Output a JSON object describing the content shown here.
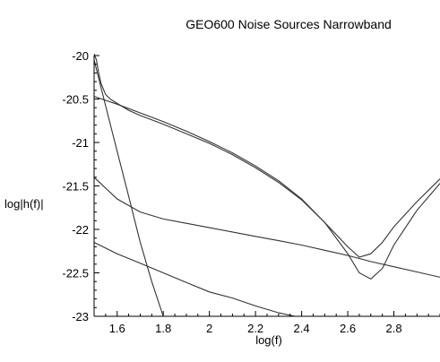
{
  "chart_data": {
    "type": "line",
    "title": "GEO600 Noise Sources Narrowband",
    "xlabel": "log(f)",
    "ylabel": "log|h(f)|",
    "xlim": [
      1.5,
      3.0
    ],
    "ylim": [
      -23,
      -20
    ],
    "xticks": [
      1.6,
      1.8,
      2,
      2.2,
      2.4,
      2.6,
      2.8
    ],
    "xtick_labels": [
      "1.6",
      "1.8",
      "2",
      "2.2",
      "2.4",
      "2.6",
      "2.8"
    ],
    "yticks": [
      -20,
      -20.5,
      -21,
      -21.5,
      -22,
      -22.5,
      -23
    ],
    "ytick_labels": [
      "-20",
      "-20.5",
      "-21",
      "-21.5",
      "-22",
      "-22.5",
      "-23"
    ],
    "grid": false,
    "legend": "none",
    "line_color": "#333333",
    "series": [
      {
        "x": [
          1.5,
          1.55,
          1.6,
          1.65,
          1.7,
          1.75,
          1.8
        ],
        "y": [
          -20.05,
          -20.58,
          -21.1,
          -21.62,
          -22.15,
          -22.6,
          -23.0
        ]
      },
      {
        "x": [
          1.5,
          1.6,
          1.7,
          1.8,
          1.9,
          2.0,
          2.1,
          2.2,
          2.3,
          2.4,
          2.5,
          2.6,
          2.65,
          2.7,
          2.75,
          2.8,
          2.9,
          3.0
        ],
        "y": [
          -20.47,
          -20.56,
          -20.66,
          -20.76,
          -20.87,
          -20.99,
          -21.12,
          -21.27,
          -21.44,
          -21.65,
          -21.92,
          -22.28,
          -22.5,
          -22.57,
          -22.45,
          -22.18,
          -21.78,
          -21.47
        ]
      },
      {
        "x": [
          1.5,
          1.51,
          1.52,
          1.53,
          1.55,
          1.57,
          1.6,
          1.65,
          1.7,
          1.8,
          1.9,
          2.0,
          2.1,
          2.2,
          2.3,
          2.4,
          2.5,
          2.6,
          2.65,
          2.7,
          2.75,
          2.8,
          2.9,
          3.0
        ],
        "y": [
          -19.98,
          -20.05,
          -20.2,
          -20.32,
          -20.45,
          -20.5,
          -20.55,
          -20.63,
          -20.69,
          -20.79,
          -20.9,
          -21.01,
          -21.14,
          -21.29,
          -21.46,
          -21.66,
          -21.92,
          -22.2,
          -22.32,
          -22.28,
          -22.15,
          -21.97,
          -21.68,
          -21.42
        ]
      },
      {
        "x": [
          1.5,
          1.6,
          1.7,
          1.8,
          1.9,
          2.0,
          2.1,
          2.2,
          2.3,
          2.4,
          2.5,
          2.6,
          2.7,
          2.8,
          2.9,
          3.0
        ],
        "y": [
          -21.4,
          -21.65,
          -21.8,
          -21.88,
          -21.93,
          -21.98,
          -22.03,
          -22.08,
          -22.13,
          -22.18,
          -22.24,
          -22.3,
          -22.37,
          -22.43,
          -22.49,
          -22.55
        ]
      },
      {
        "x": [
          1.5,
          1.6,
          1.7,
          1.8,
          1.9,
          2.0,
          2.1,
          2.2,
          2.3,
          2.37
        ],
        "y": [
          -22.15,
          -22.28,
          -22.39,
          -22.5,
          -22.61,
          -22.72,
          -22.79,
          -22.88,
          -22.96,
          -23.0
        ]
      }
    ]
  }
}
